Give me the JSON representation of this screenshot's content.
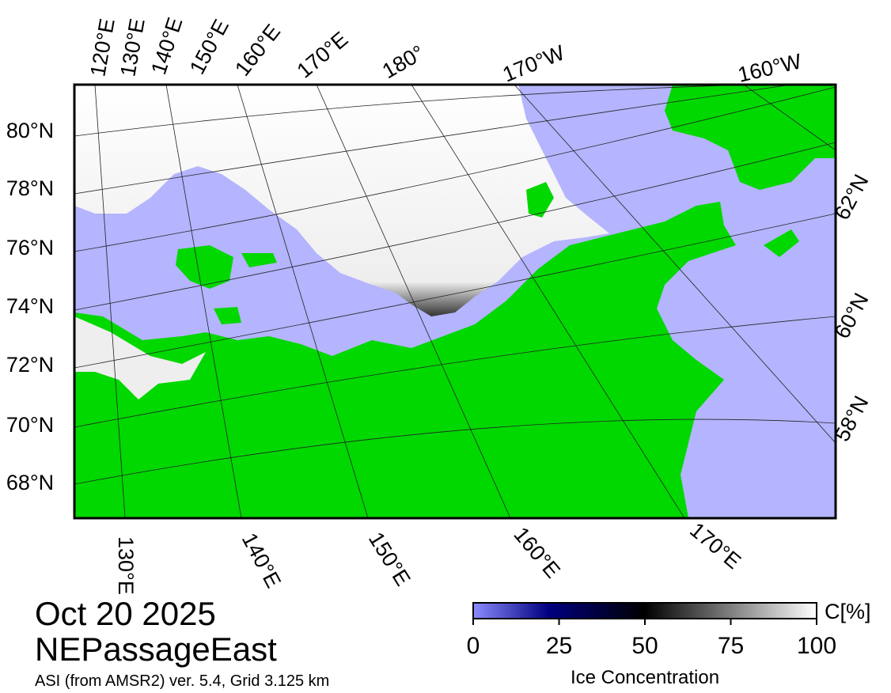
{
  "header": {
    "date": "Oct 20 2025",
    "region": "NEPassageEast",
    "source": "ASI (from AMSR2) ver. 5.4,  Grid 3.125 km"
  },
  "map": {
    "top_labels": [
      "120°E",
      "130°E",
      "140°E",
      "150°E",
      "160°E",
      "170°E",
      "180°",
      "170°W",
      "160°W"
    ],
    "left_labels": [
      "80°N",
      "78°N",
      "76°N",
      "74°N",
      "72°N",
      "70°N",
      "68°N"
    ],
    "right_labels": [
      "62°N",
      "60°N",
      "58°N"
    ],
    "bottom_labels": [
      "130°E",
      "140°E",
      "150°E",
      "160°E",
      "170°E"
    ]
  },
  "colorbar": {
    "unit": "C[%]",
    "label": "Ice Concentration",
    "lim": [
      0,
      100
    ],
    "ticks": [
      0,
      25,
      50,
      75,
      100
    ]
  }
}
